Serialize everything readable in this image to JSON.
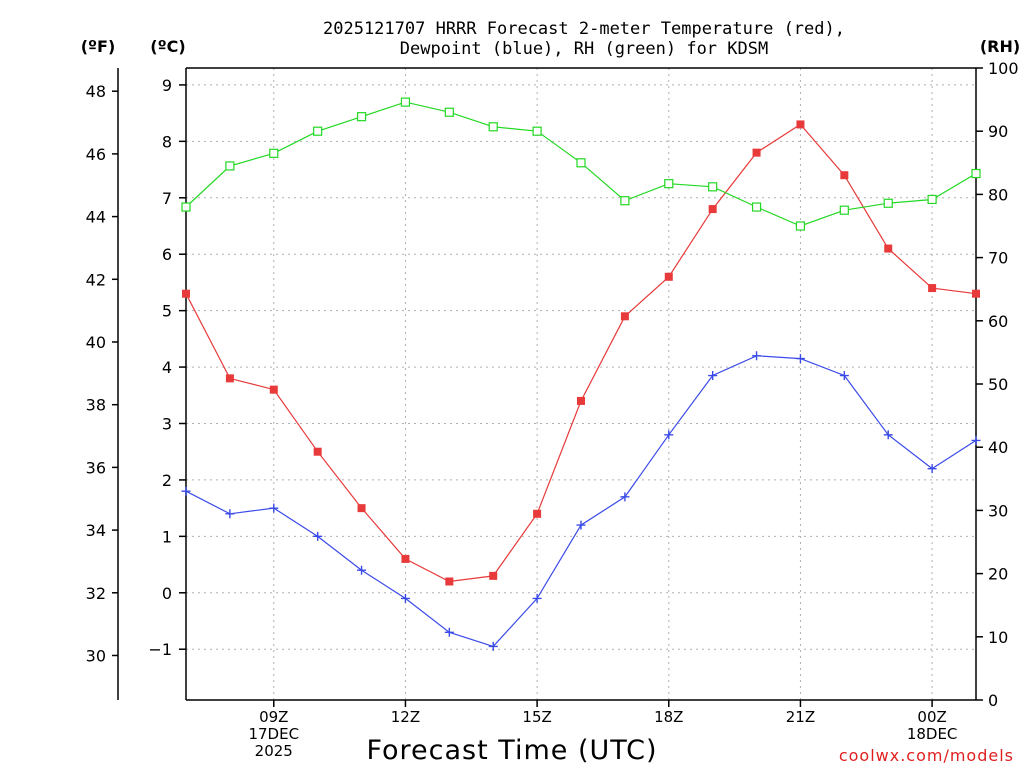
{
  "chart_data": {
    "type": "line",
    "title_line1": "2025121707 HRRR Forecast 2-meter Temperature (red),",
    "title_line2": "Dewpoint (blue), RH (green) for KDSM",
    "xlabel": "Forecast Time (UTC)",
    "credit": "coolwx.com/models",
    "units": {
      "fahrenheit": "(ºF)",
      "celsius": "(ºC)",
      "rh": "(RH)"
    },
    "x_hours": [
      7,
      8,
      9,
      10,
      11,
      12,
      13,
      14,
      15,
      16,
      17,
      18,
      19,
      20,
      21,
      22,
      23,
      24,
      25
    ],
    "xlim": [
      7,
      25
    ],
    "x_ticks": [
      {
        "hour": 9,
        "lines": [
          "09Z",
          "17DEC",
          "2025"
        ]
      },
      {
        "hour": 12,
        "lines": [
          "12Z"
        ]
      },
      {
        "hour": 15,
        "lines": [
          "15Z"
        ]
      },
      {
        "hour": 18,
        "lines": [
          "18Z"
        ]
      },
      {
        "hour": 21,
        "lines": [
          "21Z"
        ]
      },
      {
        "hour": 24,
        "lines": [
          "00Z",
          "18DEC"
        ]
      }
    ],
    "celsius_axis": {
      "range": [
        -1.9,
        9.3
      ],
      "ticks": [
        "−1",
        "0",
        "1",
        "2",
        "3",
        "4",
        "5",
        "6",
        "7",
        "8",
        "9"
      ]
    },
    "fahrenheit_axis": {
      "ticks": [
        "30",
        "32",
        "34",
        "36",
        "38",
        "40",
        "42",
        "44",
        "46",
        "48"
      ]
    },
    "rh_axis": {
      "range": [
        0,
        100
      ],
      "ticks": [
        "0",
        "10",
        "20",
        "30",
        "40",
        "50",
        "60",
        "70",
        "80",
        "90",
        "100"
      ]
    },
    "series": [
      {
        "name": "Temperature",
        "axis": "celsius",
        "color": "#e83a3a",
        "marker": "filled-square",
        "values": [
          5.3,
          3.8,
          3.6,
          2.5,
          1.5,
          0.6,
          0.2,
          0.3,
          1.4,
          3.4,
          4.9,
          5.6,
          6.8,
          7.8,
          8.3,
          7.4,
          6.1,
          5.4,
          5.3
        ]
      },
      {
        "name": "Dewpoint",
        "axis": "celsius",
        "color": "#3a4ae8",
        "marker": "plus",
        "values": [
          1.8,
          1.4,
          1.5,
          1.0,
          0.4,
          -0.1,
          -0.7,
          -0.95,
          -0.1,
          1.2,
          1.7,
          2.8,
          3.85,
          4.2,
          4.15,
          3.85,
          2.8,
          2.2,
          2.7
        ]
      },
      {
        "name": "Relative Humidity",
        "axis": "rh",
        "color": "#22d822",
        "marker": "open-square",
        "values": [
          78,
          84.5,
          86.5,
          90,
          92.3,
          94.6,
          93,
          90.7,
          90,
          85,
          79,
          81.7,
          81.2,
          78,
          75,
          77.5,
          78.6,
          79.2,
          83.3
        ]
      }
    ]
  }
}
